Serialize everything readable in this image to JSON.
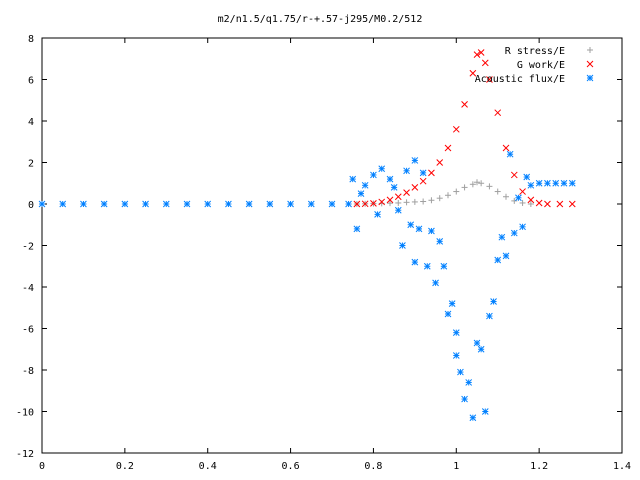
{
  "chart_data": {
    "type": "scatter",
    "title": "m2/n1.5/q1.75/r-+.57-j295/M0.2/512",
    "xlabel": "",
    "ylabel": "",
    "xlim": [
      0,
      1.4
    ],
    "ylim": [
      -12,
      8
    ],
    "x_ticks": [
      "0",
      "0.2",
      "0.4",
      "0.6",
      "0.8",
      "1",
      "1.2",
      "1.4"
    ],
    "y_ticks": [
      "8",
      "6",
      "4",
      "2",
      "0",
      "-2",
      "-4",
      "-6",
      "-8",
      "-10",
      "-12"
    ],
    "grid": false,
    "legend_position": "top-right",
    "series": [
      {
        "name": "R stress/E",
        "marker": "+",
        "color": "#a0a0a0",
        "points": [
          [
            0.76,
            0.0
          ],
          [
            0.78,
            0.01
          ],
          [
            0.8,
            0.02
          ],
          [
            0.82,
            0.03
          ],
          [
            0.84,
            0.04
          ],
          [
            0.86,
            0.05
          ],
          [
            0.88,
            0.08
          ],
          [
            0.9,
            0.1
          ],
          [
            0.92,
            0.12
          ],
          [
            0.94,
            0.18
          ],
          [
            0.96,
            0.28
          ],
          [
            0.98,
            0.42
          ],
          [
            1.0,
            0.6
          ],
          [
            1.02,
            0.8
          ],
          [
            1.04,
            0.95
          ],
          [
            1.05,
            1.05
          ],
          [
            1.06,
            1.0
          ],
          [
            1.08,
            0.85
          ],
          [
            1.1,
            0.6
          ],
          [
            1.12,
            0.35
          ],
          [
            1.14,
            0.15
          ],
          [
            1.16,
            0.05
          ],
          [
            1.18,
            0.0
          ]
        ]
      },
      {
        "name": "G work/E",
        "marker": "x",
        "color": "#ff0000",
        "points": [
          [
            0.76,
            0.0
          ],
          [
            0.78,
            0.01
          ],
          [
            0.8,
            0.03
          ],
          [
            0.82,
            0.1
          ],
          [
            0.84,
            0.2
          ],
          [
            0.86,
            0.35
          ],
          [
            0.88,
            0.55
          ],
          [
            0.9,
            0.8
          ],
          [
            0.92,
            1.1
          ],
          [
            0.94,
            1.5
          ],
          [
            0.96,
            2.0
          ],
          [
            0.98,
            2.7
          ],
          [
            1.0,
            3.6
          ],
          [
            1.02,
            4.8
          ],
          [
            1.04,
            6.3
          ],
          [
            1.05,
            7.2
          ],
          [
            1.06,
            7.3
          ],
          [
            1.07,
            6.8
          ],
          [
            1.08,
            6.0
          ],
          [
            1.1,
            4.4
          ],
          [
            1.12,
            2.7
          ],
          [
            1.14,
            1.4
          ],
          [
            1.16,
            0.6
          ],
          [
            1.18,
            0.2
          ],
          [
            1.2,
            0.05
          ],
          [
            1.22,
            0.0
          ],
          [
            1.25,
            0.0
          ],
          [
            1.28,
            0.0
          ]
        ]
      },
      {
        "name": "Acoustic flux/E",
        "marker": "*",
        "color": "#0080ff",
        "points": [
          [
            0.0,
            0.0
          ],
          [
            0.05,
            0.0
          ],
          [
            0.1,
            0.0
          ],
          [
            0.15,
            0.0
          ],
          [
            0.2,
            0.0
          ],
          [
            0.25,
            0.0
          ],
          [
            0.3,
            0.0
          ],
          [
            0.35,
            0.0
          ],
          [
            0.4,
            0.0
          ],
          [
            0.45,
            0.0
          ],
          [
            0.5,
            0.0
          ],
          [
            0.55,
            0.0
          ],
          [
            0.6,
            0.0
          ],
          [
            0.65,
            0.0
          ],
          [
            0.7,
            0.0
          ],
          [
            0.74,
            0.0
          ],
          [
            0.75,
            1.2
          ],
          [
            0.76,
            -1.2
          ],
          [
            0.77,
            0.5
          ],
          [
            0.78,
            0.9
          ],
          [
            0.8,
            1.4
          ],
          [
            0.81,
            -0.5
          ],
          [
            0.82,
            1.7
          ],
          [
            0.84,
            1.2
          ],
          [
            0.85,
            0.8
          ],
          [
            0.86,
            -0.3
          ],
          [
            0.87,
            -2.0
          ],
          [
            0.88,
            1.6
          ],
          [
            0.89,
            -1.0
          ],
          [
            0.9,
            2.1
          ],
          [
            0.9,
            -2.8
          ],
          [
            0.91,
            -1.2
          ],
          [
            0.92,
            1.5
          ],
          [
            0.93,
            -3.0
          ],
          [
            0.94,
            -1.3
          ],
          [
            0.95,
            -3.8
          ],
          [
            0.96,
            -1.8
          ],
          [
            0.97,
            -3.0
          ],
          [
            0.98,
            -5.3
          ],
          [
            0.99,
            -4.8
          ],
          [
            1.0,
            -6.2
          ],
          [
            1.0,
            -7.3
          ],
          [
            1.01,
            -8.1
          ],
          [
            1.02,
            -9.4
          ],
          [
            1.03,
            -8.6
          ],
          [
            1.04,
            -10.3
          ],
          [
            1.05,
            -6.7
          ],
          [
            1.06,
            -7.0
          ],
          [
            1.07,
            -10.0
          ],
          [
            1.08,
            -5.4
          ],
          [
            1.09,
            -4.7
          ],
          [
            1.1,
            -2.7
          ],
          [
            1.11,
            -1.6
          ],
          [
            1.12,
            -2.5
          ],
          [
            1.13,
            2.4
          ],
          [
            1.14,
            -1.4
          ],
          [
            1.15,
            0.3
          ],
          [
            1.16,
            -1.1
          ],
          [
            1.17,
            1.3
          ],
          [
            1.18,
            0.9
          ],
          [
            1.2,
            1.0
          ],
          [
            1.22,
            1.0
          ],
          [
            1.24,
            1.0
          ],
          [
            1.26,
            1.0
          ],
          [
            1.28,
            1.0
          ]
        ]
      }
    ]
  }
}
